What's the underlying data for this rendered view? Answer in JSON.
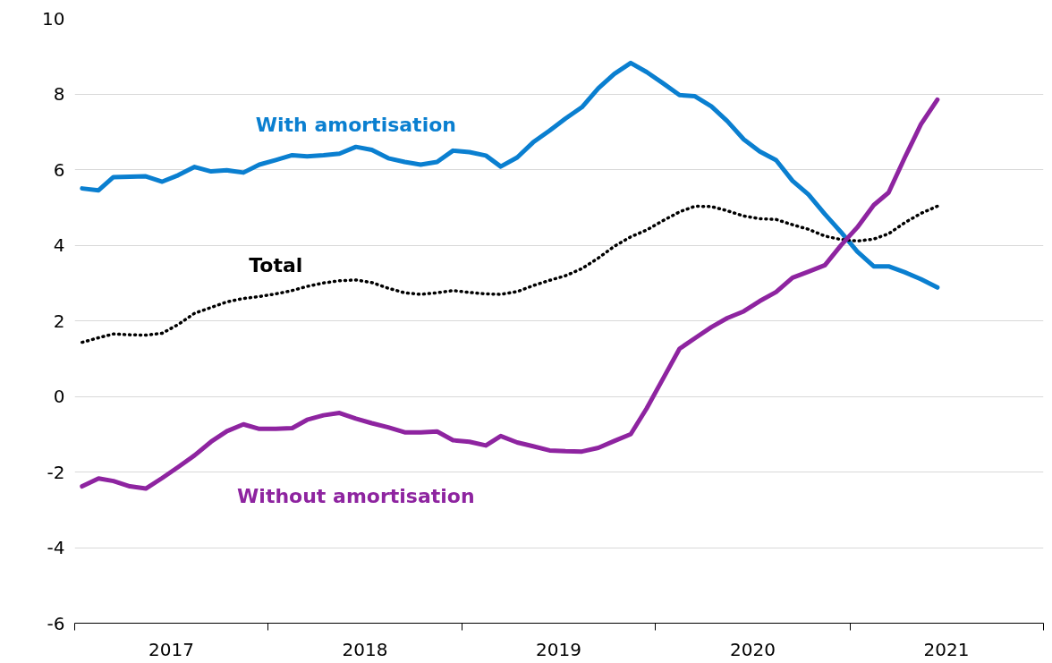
{
  "chart_data": {
    "type": "line",
    "x": [
      "2017-01-15",
      "2017-02-15",
      "2017-03-15",
      "2017-04-15",
      "2017-05-15",
      "2017-06-15",
      "2017-07-15",
      "2017-08-15",
      "2017-09-15",
      "2017-10-15",
      "2017-11-15",
      "2017-12-15",
      "2018-01-15",
      "2018-02-15",
      "2018-03-15",
      "2018-04-15",
      "2018-05-15",
      "2018-06-15",
      "2018-07-15",
      "2018-08-15",
      "2018-09-15",
      "2018-10-15",
      "2018-11-15",
      "2018-12-15",
      "2019-01-15",
      "2019-02-15",
      "2019-03-15",
      "2019-04-15",
      "2019-05-15",
      "2019-06-15",
      "2019-07-15",
      "2019-08-15",
      "2019-09-15",
      "2019-10-15",
      "2019-11-15",
      "2019-12-15",
      "2020-01-15",
      "2020-02-15",
      "2020-03-15",
      "2020-04-15",
      "2020-05-15",
      "2020-06-15",
      "2020-07-15",
      "2020-08-15",
      "2020-09-15",
      "2020-10-15",
      "2020-11-15",
      "2020-12-15",
      "2021-01-15",
      "2021-02-15",
      "2021-03-15",
      "2021-04-15",
      "2021-05-15",
      "2021-06-15"
    ],
    "series": [
      {
        "name": "With amortisation",
        "color": "#0a7fd0",
        "line_style": "solid",
        "values": [
          5.5,
          5.45,
          5.8,
          5.81,
          5.82,
          5.68,
          5.85,
          6.07,
          5.95,
          5.98,
          5.92,
          6.13,
          6.25,
          6.38,
          6.35,
          6.38,
          6.42,
          6.6,
          6.52,
          6.3,
          6.2,
          6.13,
          6.2,
          6.5,
          6.46,
          6.37,
          6.08,
          6.32,
          6.72,
          7.03,
          7.35,
          7.65,
          8.15,
          8.53,
          8.82,
          8.58,
          8.28,
          7.97,
          7.94,
          7.67,
          7.28,
          6.8,
          6.48,
          6.25,
          5.7,
          5.34,
          4.82,
          4.35,
          3.83,
          3.44,
          3.44,
          3.28,
          3.1,
          2.88
        ]
      },
      {
        "name": "Total",
        "color": "#000000",
        "line_style": "dotted",
        "values": [
          1.43,
          1.55,
          1.65,
          1.63,
          1.62,
          1.67,
          1.9,
          2.2,
          2.35,
          2.5,
          2.59,
          2.64,
          2.71,
          2.8,
          2.91,
          3.0,
          3.06,
          3.08,
          3.01,
          2.86,
          2.74,
          2.7,
          2.74,
          2.8,
          2.75,
          2.71,
          2.7,
          2.77,
          2.93,
          3.07,
          3.19,
          3.38,
          3.66,
          3.97,
          4.22,
          4.4,
          4.65,
          4.88,
          5.03,
          5.02,
          4.91,
          4.77,
          4.7,
          4.68,
          4.54,
          4.42,
          4.24,
          4.15,
          4.11,
          4.16,
          4.3,
          4.6,
          4.84,
          5.03
        ]
      },
      {
        "name": "Without amortisation",
        "color": "#8e24a0",
        "line_style": "solid",
        "values": [
          -2.38,
          -2.17,
          -2.24,
          -2.38,
          -2.44,
          -2.16,
          -1.87,
          -1.56,
          -1.2,
          -0.92,
          -0.74,
          -0.86,
          -0.86,
          -0.84,
          -0.62,
          -0.5,
          -0.44,
          -0.59,
          -0.71,
          -0.82,
          -0.95,
          -0.95,
          -0.93,
          -1.16,
          -1.2,
          -1.3,
          -1.05,
          -1.22,
          -1.32,
          -1.43,
          -1.45,
          -1.46,
          -1.36,
          -1.18,
          -1.0,
          -0.32,
          0.47,
          1.26,
          1.54,
          1.83,
          2.07,
          2.25,
          2.52,
          2.76,
          3.14,
          3.3,
          3.47,
          3.99,
          4.47,
          5.06,
          5.39,
          6.33,
          7.2,
          7.85
        ]
      }
    ],
    "xlim": [
      "2017-01-01",
      "2022-01-01"
    ],
    "xticks": [
      {
        "value": "2017-01-01",
        "label": null
      },
      {
        "value": "2017-07-02",
        "label": "2017"
      },
      {
        "value": "2018-01-01",
        "label": null
      },
      {
        "value": "2018-07-02",
        "label": "2018"
      },
      {
        "value": "2019-01-01",
        "label": null
      },
      {
        "value": "2019-07-02",
        "label": "2019"
      },
      {
        "value": "2020-01-01",
        "label": null
      },
      {
        "value": "2020-07-02",
        "label": "2020"
      },
      {
        "value": "2021-01-01",
        "label": null
      },
      {
        "value": "2021-07-02",
        "label": "2021"
      },
      {
        "value": "2022-01-01",
        "label": null
      }
    ],
    "ylim": [
      -6,
      10
    ],
    "yticks": [
      -6,
      -4,
      -2,
      0,
      2,
      4,
      6,
      8,
      10
    ],
    "grid": "y"
  }
}
